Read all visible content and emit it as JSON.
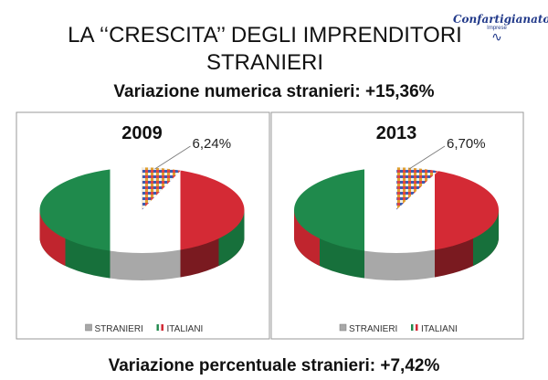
{
  "slide": {
    "title": "LA ‘‘CRESCITA’’ DEGLI IMPRENDITORI STRANIERI",
    "title_line1": "LA ‘‘CRESCITA’’ DEGLI IMPRENDITORI",
    "title_line2": "STRANIERI",
    "subtitle_top": "Variazione numerica stranieri: +15,36%",
    "subtitle_bottom": "Variazione percentuale stranieri: +7,42%",
    "logo": {
      "name": "Confartigianato",
      "sub": "Imprese"
    }
  },
  "colors": {
    "green": "#1f8a4c",
    "white": "#ffffff",
    "red": "#d42a35",
    "gray": "#a8a8a8"
  },
  "chart_data": [
    {
      "type": "pie",
      "title": "2009",
      "categories": [
        "STRANIERI",
        "ITALIANI"
      ],
      "values": [
        6.24,
        93.76
      ],
      "data_labels": [
        "6,24%",
        ""
      ],
      "legend": [
        "STRANIERI",
        "ITALIANI"
      ],
      "legend_position": "bottom"
    },
    {
      "type": "pie",
      "title": "2013",
      "categories": [
        "STRANIERI",
        "ITALIANI"
      ],
      "values": [
        6.7,
        93.3
      ],
      "data_labels": [
        "6,70%",
        ""
      ],
      "legend": [
        "STRANIERI",
        "ITALIANI"
      ],
      "legend_position": "bottom"
    }
  ]
}
